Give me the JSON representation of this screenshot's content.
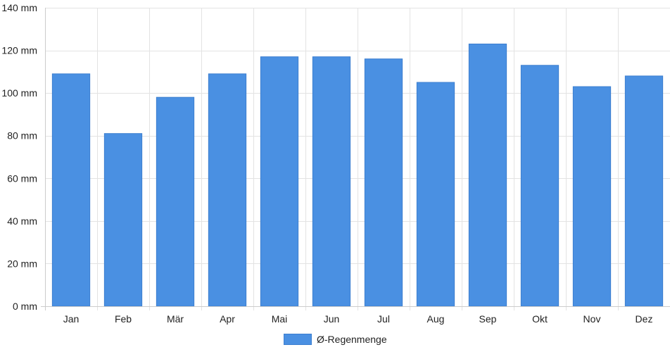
{
  "chart_data": {
    "type": "bar",
    "categories": [
      "Jan",
      "Feb",
      "Mär",
      "Apr",
      "Mai",
      "Jun",
      "Jul",
      "Aug",
      "Sep",
      "Okt",
      "Nov",
      "Dez"
    ],
    "series": [
      {
        "name": "Ø-Regenmenge",
        "values": [
          109,
          81,
          98,
          109,
          117,
          117,
          116,
          105,
          123,
          113,
          103,
          108
        ],
        "color": "#4a90e2"
      }
    ],
    "unit": "mm",
    "ylim": [
      0,
      140
    ],
    "yticks": [
      0,
      20,
      40,
      60,
      80,
      100,
      120,
      140
    ],
    "ytick_labels": [
      "0 mm",
      "20 mm",
      "40 mm",
      "60 mm",
      "80 mm",
      "100 mm",
      "120 mm",
      "140 mm"
    ],
    "grid": true,
    "legend_position": "bottom-center"
  }
}
